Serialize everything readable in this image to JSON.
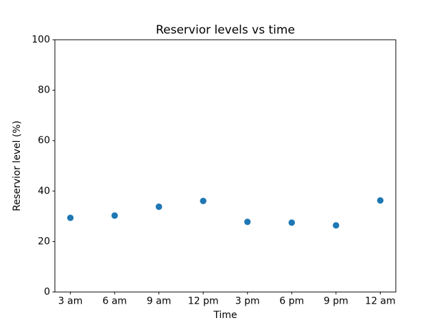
{
  "chart_data": {
    "type": "scatter",
    "title": "Reservior levels vs time",
    "xlabel": "Time",
    "ylabel": "Reservior level (%)",
    "categories": [
      "3 am",
      "6 am",
      "9 am",
      "12 pm",
      "3 pm",
      "6 pm",
      "9 pm",
      "12 am"
    ],
    "values": [
      29.4,
      30.3,
      33.8,
      36.1,
      27.8,
      27.5,
      26.4,
      36.3
    ],
    "ylim": [
      0,
      100
    ],
    "yticks": [
      0,
      20,
      40,
      60,
      80,
      100
    ],
    "marker_color": "#1f77b4",
    "grid": false,
    "legend": "none",
    "background": "#ffffff"
  }
}
